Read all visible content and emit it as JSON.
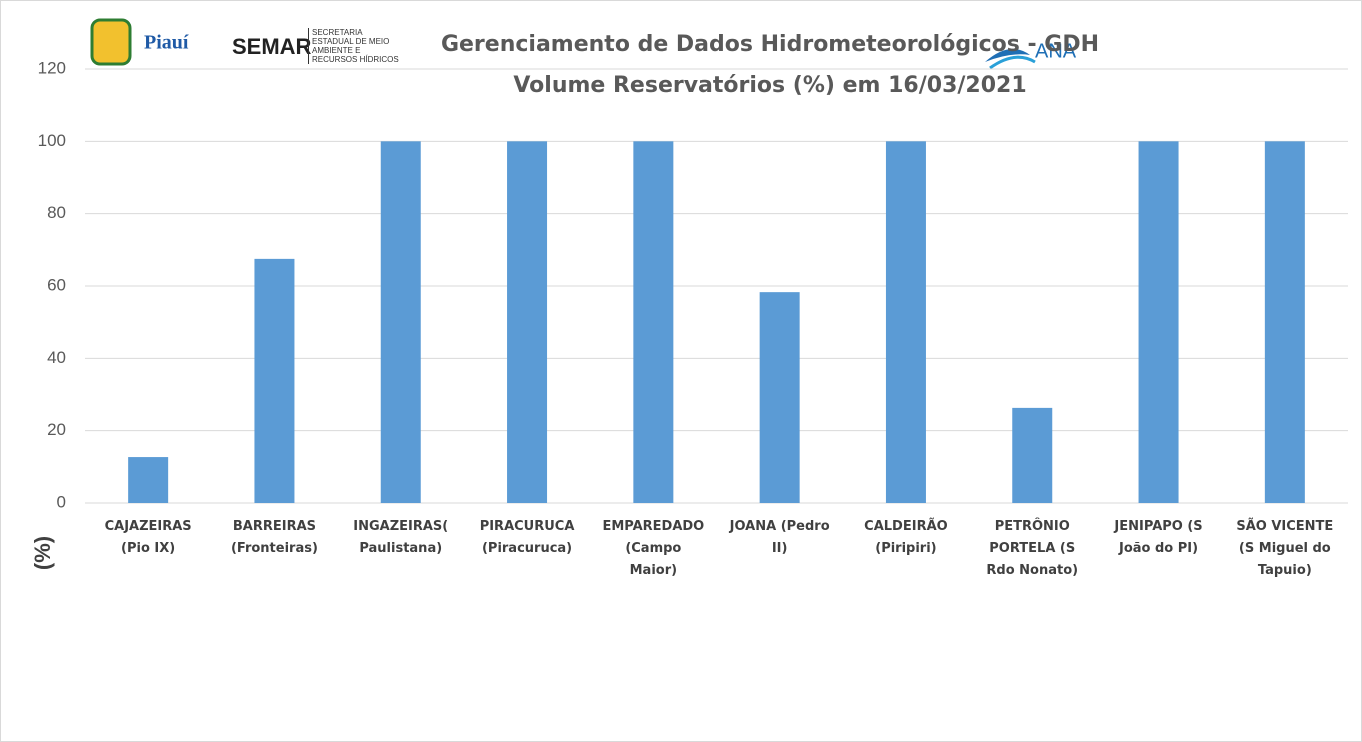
{
  "chart_data": {
    "type": "bar",
    "title": "Gerenciamento de Dados Hidrometeorológicos - GDH",
    "subtitle": "Volume Reservatórios (%)  em 16/03/2021",
    "y_label": "(%)",
    "logos": {
      "piaui": "Piauí",
      "semar": "SEMAR",
      "semar_text": "SECRETARIA ESTADUAL DE MEIO AMBIENTE E RECURSOS HÍDRICOS",
      "ana": "ANA"
    },
    "categories": [
      "CAJAZEIRAS (Pio IX)",
      "BARREIRAS (Fronteiras)",
      "INGAZEIRAS( Paulistana)",
      "PIRACURUCA (Piracuruca)",
      "EMPAREDADO (Campo Maior)",
      "JOANA (Pedro II)",
      "CALDEIRÃO (Piripiri)",
      "PETRÔNIO PORTELA (S Rdo Nonato)",
      "JENIPAPO (S João do PI)",
      "SÃO VICENTE (S Miguel do Tapuio)"
    ],
    "values": [
      12.7,
      67.5,
      100,
      100,
      100,
      58.3,
      100,
      26.3,
      100,
      100
    ],
    "color": "#5b9bd5",
    "ylim": [
      0,
      120
    ],
    "yticks": [
      0,
      20,
      40,
      60,
      80,
      100,
      120
    ],
    "grid": true
  }
}
